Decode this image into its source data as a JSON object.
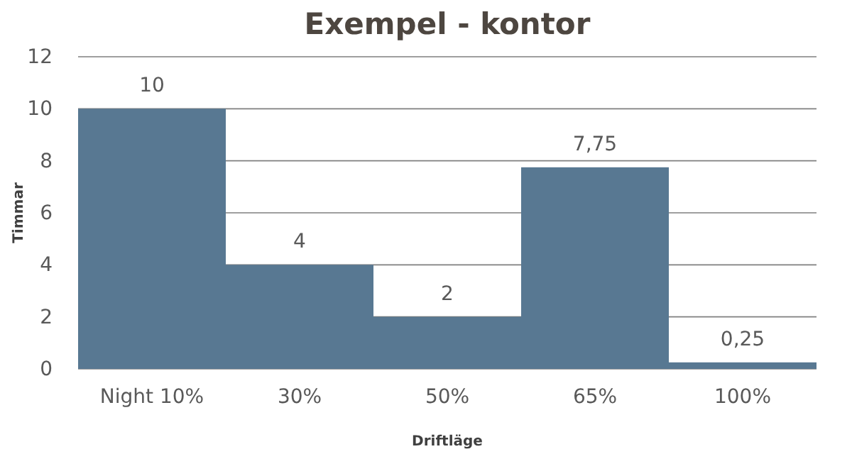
{
  "chart_data": {
    "type": "bar",
    "title": "Exempel - kontor",
    "xlabel": "Driftläge",
    "ylabel": "Timmar",
    "categories": [
      "Night 10%",
      "30%",
      "50%",
      "65%",
      "100%"
    ],
    "values": [
      10,
      4,
      2,
      7.75,
      0.25
    ],
    "value_labels": [
      "10",
      "4",
      "2",
      "7,75",
      "0,25"
    ],
    "color": "#587892",
    "ylim": [
      0,
      12
    ],
    "yticks": [
      0,
      2,
      4,
      6,
      8,
      10,
      12
    ],
    "grid": "y"
  }
}
